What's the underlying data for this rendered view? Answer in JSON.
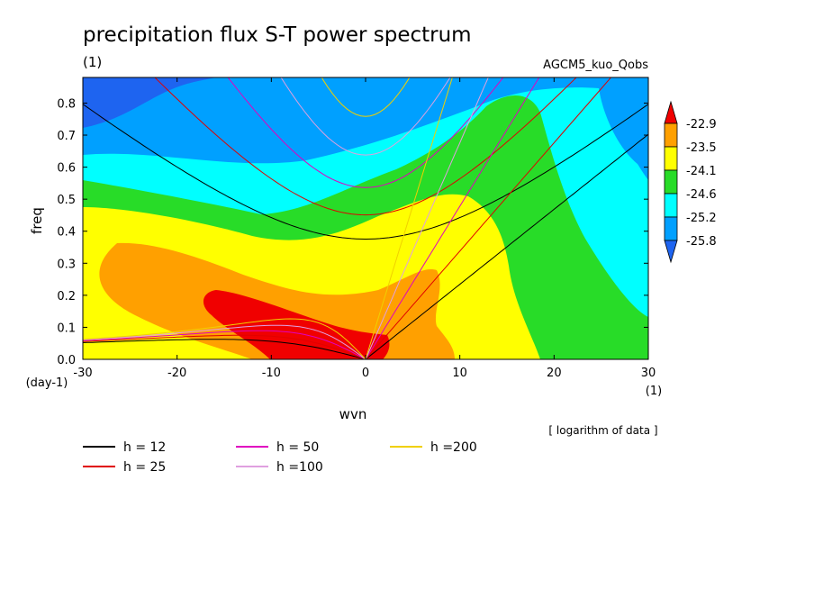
{
  "title": "precipitation flux S-T power spectrum",
  "title_unit": "(1)",
  "model_label": "AGCM5_kuo_Qobs",
  "note": "[ logarithm of data ]",
  "colors": {
    "levels": [
      "#1e64f0",
      "#00a0ff",
      "#00ffff",
      "#28dc28",
      "#ffff00",
      "#ffa000",
      "#f00000"
    ],
    "curves": {
      "h12": "#000000",
      "h25": "#e00000",
      "h50": "#e000c0",
      "h100": "#e0a0e0",
      "h200": "#f0d000"
    }
  },
  "chart_data": {
    "type": "heatmap",
    "xlabel": "wvn",
    "ylabel": "freq",
    "x_unit": "(1)",
    "y_unit": "(day-1)",
    "xlim": [
      -30,
      30
    ],
    "ylim": [
      0,
      0.88
    ],
    "x_ticks": [
      "-30",
      "-20",
      "-10",
      "0",
      "10",
      "20",
      "30"
    ],
    "y_ticks": [
      "0.0",
      "0.1",
      "0.2",
      "0.3",
      "0.4",
      "0.5",
      "0.6",
      "0.7",
      "0.8"
    ],
    "colorbar": {
      "labels": [
        "-22.9",
        "-23.5",
        "-24.1",
        "-24.6",
        "-25.2",
        "-25.8"
      ],
      "extend": "both"
    },
    "dispersion_curves": [
      {
        "name": "h = 12",
        "key": "h12"
      },
      {
        "name": "h = 25",
        "key": "h25"
      },
      {
        "name": "h = 50",
        "key": "h50"
      },
      {
        "name": "h =100",
        "key": "h100"
      },
      {
        "name": "h =200",
        "key": "h200"
      }
    ],
    "grid": false
  }
}
